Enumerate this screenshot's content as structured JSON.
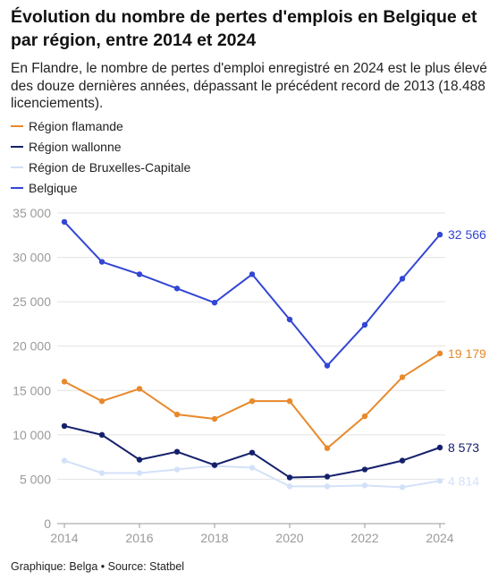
{
  "title": "Évolution du nombre de pertes d'emplois en Belgique et par région, entre 2014 et 2024",
  "subtitle": "En Flandre, le nombre de pertes d'emploi enregistré en 2024 est le plus élevé des douze dernières années, dépassant le précédent record de 2013 (18.488 licenciements).",
  "footer": "Graphique: Belga • Source: Statbel",
  "chart_data": {
    "type": "line",
    "x": [
      2014,
      2015,
      2016,
      2017,
      2018,
      2019,
      2020,
      2021,
      2022,
      2023,
      2024
    ],
    "xticks": [
      2014,
      2016,
      2018,
      2020,
      2022,
      2024
    ],
    "xtick_labels": [
      "2014",
      "2016",
      "2018",
      "2020",
      "2022",
      "2024"
    ],
    "xlim": [
      2014,
      2024
    ],
    "ylim": [
      0,
      35000
    ],
    "yticks": [
      0,
      5000,
      10000,
      15000,
      20000,
      25000,
      30000,
      35000
    ],
    "ytick_labels": [
      "0",
      "5 000",
      "10 000",
      "15 000",
      "20 000",
      "25 000",
      "30 000",
      "35 000"
    ],
    "grid": true,
    "legend_position": "top-left",
    "series": [
      {
        "name": "Région flamande",
        "color": "#E8892B",
        "values": [
          16000,
          13800,
          15200,
          12300,
          11800,
          13800,
          13800,
          8500,
          12100,
          16500,
          19179
        ],
        "end_label": "19 179"
      },
      {
        "name": "Région wallonne",
        "color": "#14206B",
        "values": [
          11000,
          10000,
          7200,
          8100,
          6600,
          8000,
          5200,
          5300,
          6100,
          7100,
          8573
        ],
        "end_label": "8 573"
      },
      {
        "name": "Région de Bruxelles-Capitale",
        "color": "#D3E1F8",
        "values": [
          7100,
          5700,
          5700,
          6100,
          6500,
          6300,
          4200,
          4200,
          4300,
          4100,
          4814
        ],
        "end_label": "4 814"
      },
      {
        "name": "Belgique",
        "color": "#3346D4",
        "values": [
          34000,
          29500,
          28100,
          26500,
          24900,
          28100,
          23000,
          17800,
          22400,
          27600,
          32566
        ],
        "end_label": "32 566"
      }
    ]
  }
}
